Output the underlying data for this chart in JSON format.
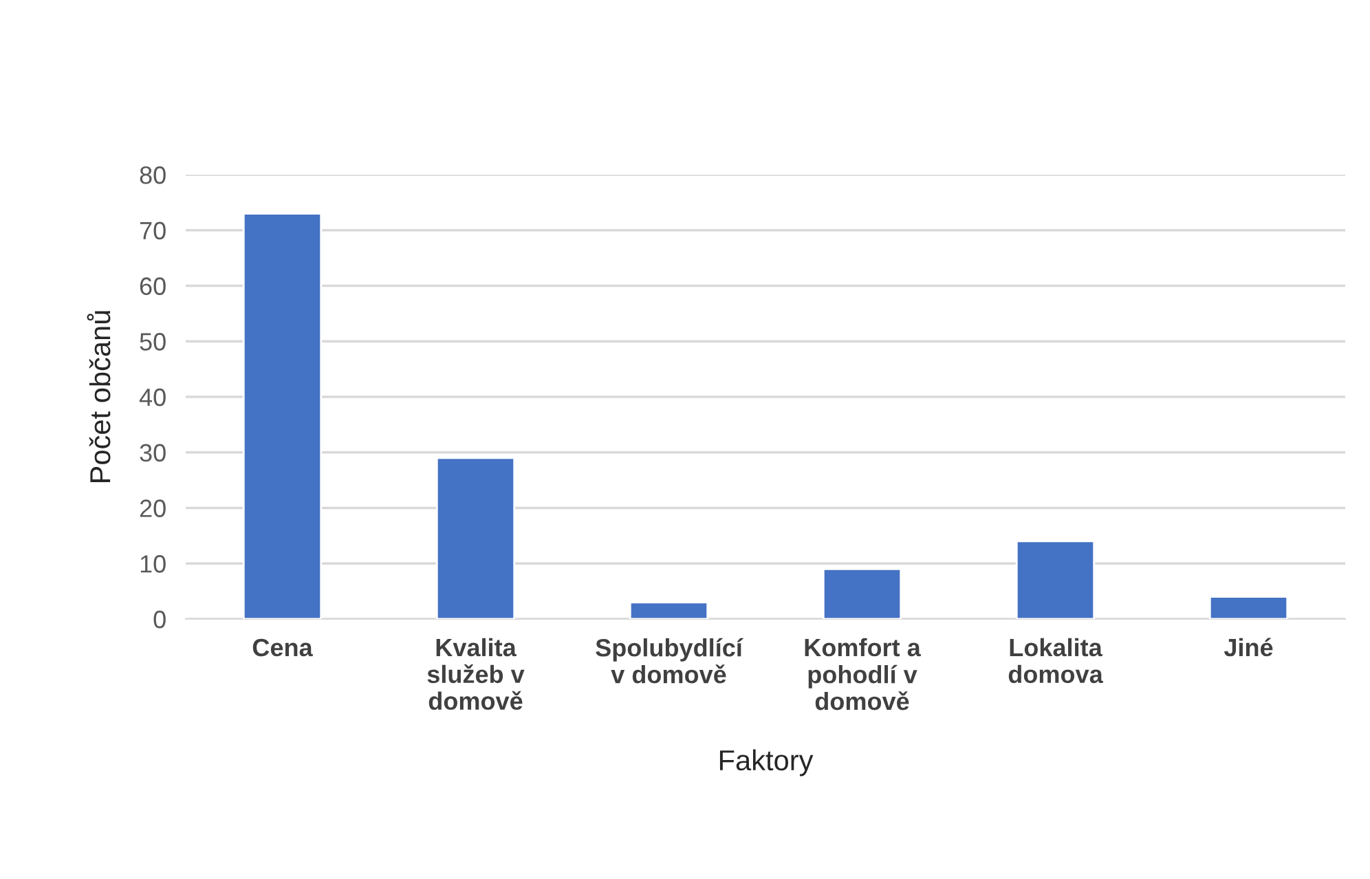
{
  "chart_data": {
    "type": "bar",
    "xlabel": "Faktory",
    "ylabel": "Počet občanů",
    "categories": [
      "Cena",
      "Kvalita\nslužeb v\ndomově",
      "Spolubydlící\nv domově",
      "Komfort a\npohodlí v\ndomově",
      "Lokalita\ndomova",
      "Jiné"
    ],
    "values": [
      73,
      29,
      3,
      9,
      14,
      4
    ],
    "color": "#4472c4",
    "ylim": [
      0,
      80
    ],
    "yticks": [
      0,
      10,
      20,
      30,
      40,
      50,
      60,
      70,
      80
    ],
    "grid": "y"
  }
}
